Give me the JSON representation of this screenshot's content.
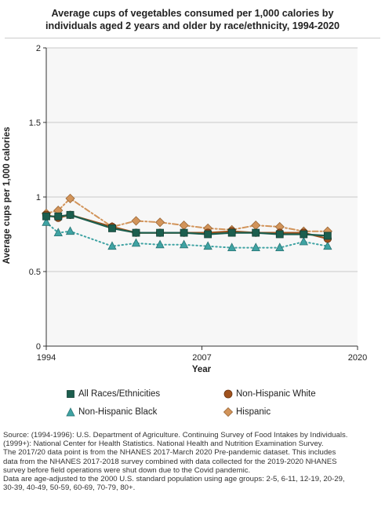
{
  "title_line1": "Average cups of vegetables consumed per 1,000 calories by",
  "title_line2": "individuals aged 2 years and older by race/ethnicity, 1994-2020",
  "chart_data": {
    "type": "line",
    "title": "Average cups of vegetables consumed per 1,000 calories by individuals aged 2 years and older by race/ethnicity, 1994-2020",
    "xlabel": "Year",
    "ylabel": "Average cups per 1,000 calories",
    "xlim": [
      1994,
      2020
    ],
    "ylim": [
      0,
      2
    ],
    "xticks": [
      1994,
      2007,
      2020
    ],
    "yticks": [
      0,
      0.5,
      1,
      1.5,
      2
    ],
    "ytick_labels": [
      "0",
      "0.5",
      "1",
      "1.5",
      "2"
    ],
    "grid": "horizontal",
    "legend_position": "bottom",
    "series": [
      {
        "name": "All Races/Ethnicities",
        "color": "#1c5e4e",
        "line": "solid",
        "marker": "square",
        "x": [
          1994,
          1995,
          1996,
          1999.5,
          2001.5,
          2003.5,
          2005.5,
          2007.5,
          2009.5,
          2011.5,
          2013.5,
          2015.5,
          2017.5
        ],
        "y": [
          0.87,
          0.87,
          0.88,
          0.79,
          0.76,
          0.76,
          0.76,
          0.75,
          0.76,
          0.76,
          0.75,
          0.75,
          0.74
        ]
      },
      {
        "name": "Non-Hispanic White",
        "color": "#a0521d",
        "line": "solid",
        "marker": "circle",
        "x": [
          1994,
          1995,
          1996,
          1999.5,
          2001.5,
          2003.5,
          2005.5,
          2007.5,
          2009.5,
          2011.5,
          2013.5,
          2015.5,
          2017.5
        ],
        "y": [
          0.88,
          0.86,
          0.88,
          0.8,
          0.76,
          0.76,
          0.76,
          0.76,
          0.77,
          0.76,
          0.76,
          0.76,
          0.72
        ]
      },
      {
        "name": "Non-Hispanic Black",
        "color": "#3fa3a3",
        "line": "dotted",
        "marker": "triangle",
        "x": [
          1994,
          1995,
          1996,
          1999.5,
          2001.5,
          2003.5,
          2005.5,
          2007.5,
          2009.5,
          2011.5,
          2013.5,
          2015.5,
          2017.5
        ],
        "y": [
          0.83,
          0.76,
          0.77,
          0.67,
          0.69,
          0.68,
          0.68,
          0.67,
          0.66,
          0.66,
          0.66,
          0.7,
          0.67
        ]
      },
      {
        "name": "Hispanic",
        "color": "#d2945a",
        "line": "dashdot",
        "marker": "diamond",
        "x": [
          1994,
          1995,
          1996,
          1999.5,
          2001.5,
          2003.5,
          2005.5,
          2007.5,
          2009.5,
          2011.5,
          2013.5,
          2015.5,
          2017.5
        ],
        "y": [
          0.89,
          0.91,
          0.99,
          0.8,
          0.84,
          0.83,
          0.81,
          0.79,
          0.78,
          0.81,
          0.8,
          0.77,
          0.77
        ]
      }
    ]
  },
  "source": [
    "Source: (1994-1996): U.S. Department of Agriculture. Continuing Survey of Food Intakes by Individuals.",
    "(1999+): National Center for Health Statistics. National Health and Nutrition Examination Survey.",
    "The 2017/20 data point is from the NHANES 2017-March 2020 Pre-pandemic dataset. This includes",
    "data from the NHANES 2017-2018 survey combined with data collected for the 2019-2020 NHANES",
    "survey before field operations were shut down due to the Covid pandemic.",
    "Data are age-adjusted to the 2000 U.S. standard population using age groups: 2-5, 6-11, 12-19, 20-29,",
    "30-39, 40-49, 50-59, 60-69, 70-79, 80+."
  ]
}
